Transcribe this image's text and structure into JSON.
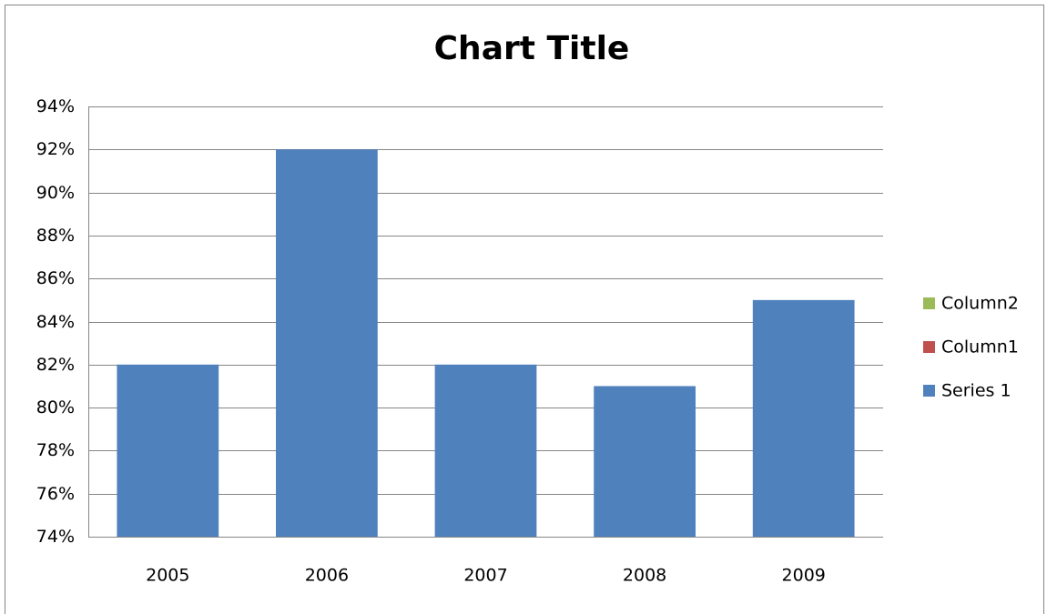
{
  "chart_data": {
    "type": "bar",
    "title": "Chart Title",
    "categories": [
      "2005",
      "2006",
      "2007",
      "2008",
      "2009"
    ],
    "series": [
      {
        "name": "Series 1",
        "color": "#4f81bd",
        "values": [
          82,
          92,
          82,
          81,
          85
        ]
      },
      {
        "name": "Column1",
        "color": "#c0504d",
        "values": [
          null,
          null,
          null,
          null,
          null
        ]
      },
      {
        "name": "Column2",
        "color": "#9bbb59",
        "values": [
          null,
          null,
          null,
          null,
          null
        ]
      }
    ],
    "ylim": [
      74,
      94
    ],
    "yticks": [
      {
        "value": 74,
        "label": "74%"
      },
      {
        "value": 76,
        "label": "76%"
      },
      {
        "value": 78,
        "label": "78%"
      },
      {
        "value": 80,
        "label": "80%"
      },
      {
        "value": 82,
        "label": "82%"
      },
      {
        "value": 84,
        "label": "84%"
      },
      {
        "value": 86,
        "label": "86%"
      },
      {
        "value": 88,
        "label": "88%"
      },
      {
        "value": 90,
        "label": "90%"
      },
      {
        "value": 92,
        "label": "92%"
      },
      {
        "value": 94,
        "label": "94%"
      }
    ],
    "grid": true,
    "legend": "right"
  }
}
